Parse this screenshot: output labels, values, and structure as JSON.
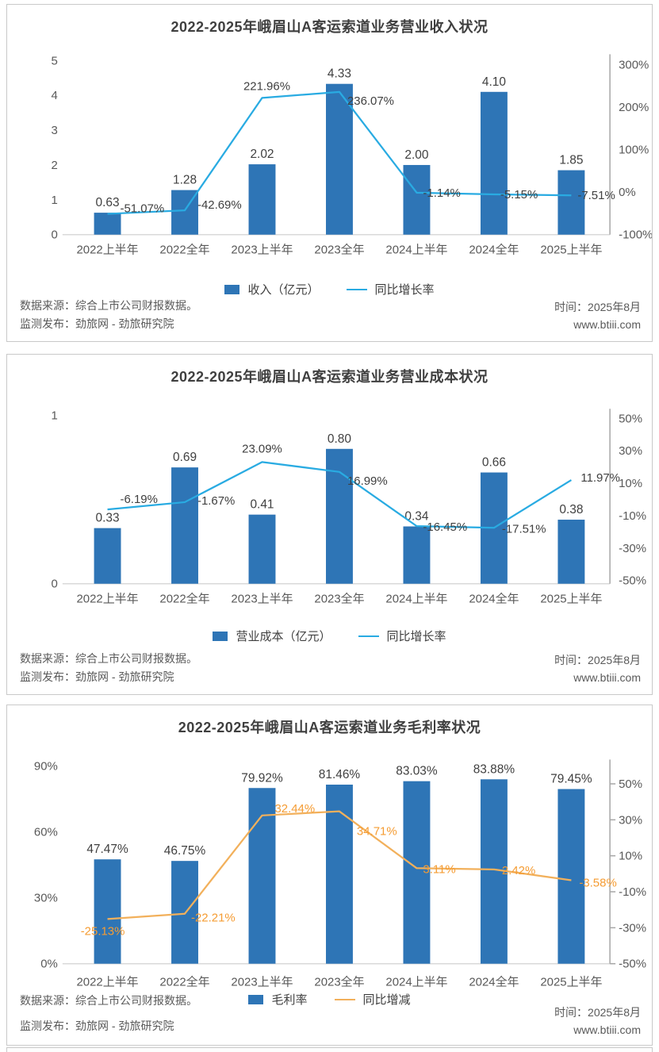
{
  "page": {
    "source_line1": "数据来源：综合上市公司财报数据。",
    "source_line2": "监测发布：劲旅网 - 劲旅研究院",
    "time": "时间：2025年8月",
    "site": "www.btiii.com"
  },
  "colors": {
    "bar": "#2e75b6",
    "line_blue": "#29abe2",
    "line_orange": "#f2b05b",
    "label_dark": "#404040",
    "label_orange": "#f59c33",
    "axis_text": "#595959",
    "baseline": "#d9d9d9",
    "axis_line": "#a6a6a6"
  },
  "chart_data": [
    {
      "type": "bar+line",
      "title": "2022-2025年峨眉山A客运索道业务营业收入状况",
      "categories": [
        "2022上半年",
        "2022全年",
        "2023上半年",
        "2023全年",
        "2024上半年",
        "2024全年",
        "2025上半年"
      ],
      "series": [
        {
          "name": "收入（亿元）",
          "type": "bar",
          "axis": "left",
          "values": [
            0.63,
            1.28,
            2.02,
            4.33,
            2.0,
            4.1,
            1.85
          ],
          "labels": [
            "0.63",
            "1.28",
            "2.02",
            "4.33",
            "2.00",
            "4.10",
            "1.85"
          ]
        },
        {
          "name": "同比增长率",
          "type": "line",
          "axis": "right",
          "values": [
            -51.07,
            -42.69,
            221.96,
            236.07,
            -1.14,
            -5.15,
            -7.51
          ],
          "labels": [
            "-51.07%",
            "-42.69%",
            "221.96%",
            "236.07%",
            "-1.14%",
            "-5.15%",
            "-7.51%"
          ]
        }
      ],
      "left_axis": {
        "min": 0,
        "max": 5,
        "tick_values": [
          5,
          4,
          3,
          2,
          1,
          0
        ],
        "tick_labels": [
          "5",
          "4",
          "3",
          "2",
          "1",
          "0"
        ]
      },
      "right_axis": {
        "min": -100,
        "max": 310,
        "tick_values": [
          300,
          200,
          100,
          0,
          -100
        ],
        "tick_labels": [
          "300%",
          "200%",
          "100%",
          "0%",
          "-100%"
        ]
      },
      "legend_position": "bottom",
      "grid": false
    },
    {
      "type": "bar+line",
      "title": "2022-2025年峨眉山A客运索道业务营业成本状况",
      "categories": [
        "2022上半年",
        "2022全年",
        "2023上半年",
        "2023全年",
        "2024上半年",
        "2024全年",
        "2025上半年"
      ],
      "series": [
        {
          "name": "营业成本（亿元）",
          "type": "bar",
          "axis": "left",
          "values": [
            0.33,
            0.69,
            0.41,
            0.8,
            0.34,
            0.66,
            0.38
          ],
          "labels": [
            "0.33",
            "0.69",
            "0.41",
            "0.80",
            "0.34",
            "0.66",
            "0.38"
          ]
        },
        {
          "name": "同比增长率",
          "type": "line",
          "axis": "right",
          "values": [
            -6.19,
            -1.67,
            23.09,
            16.99,
            -16.45,
            -17.51,
            11.97
          ],
          "labels": [
            "-6.19%",
            "-1.67%",
            "23.09%",
            "16.99%",
            "-16.45%",
            "-17.51%",
            "11.97%"
          ]
        }
      ],
      "left_axis": {
        "min": 0,
        "max": 1,
        "tick_values": [
          1,
          0
        ],
        "tick_labels": [
          "1",
          "0"
        ]
      },
      "right_axis": {
        "min": -52,
        "max": 52,
        "tick_values": [
          50,
          30,
          10,
          -10,
          -30,
          -50
        ],
        "tick_labels": [
          "50%",
          "30%",
          "10%",
          "-10%",
          "-30%",
          "-50%"
        ]
      },
      "legend_position": "bottom",
      "grid": false
    },
    {
      "type": "bar+line",
      "title": "2022-2025年峨眉山A客运索道业务毛利率状况",
      "categories": [
        "2022上半年",
        "2022全年",
        "2023上半年",
        "2023全年",
        "2024上半年",
        "2024全年",
        "2025上半年"
      ],
      "series": [
        {
          "name": "毛利率",
          "type": "bar",
          "axis": "left",
          "values": [
            47.47,
            46.75,
            79.92,
            81.46,
            83.03,
            83.88,
            79.45
          ],
          "labels": [
            "47.47%",
            "46.75%",
            "79.92%",
            "81.46%",
            "83.03%",
            "83.88%",
            "79.45%"
          ]
        },
        {
          "name": "同比增减",
          "type": "line",
          "axis": "right",
          "values": [
            -25.13,
            -22.21,
            32.44,
            34.71,
            3.11,
            2.42,
            -3.58
          ],
          "labels": [
            "-25.13%",
            "-22.21%",
            "32.44%",
            "34.71%",
            "3.11%",
            "2.42%",
            "-3.58%"
          ]
        }
      ],
      "left_axis": {
        "min": 0,
        "max": 90,
        "tick_values": [
          90,
          60,
          30,
          0
        ],
        "tick_labels": [
          "90%",
          "60%",
          "30%",
          "0%"
        ]
      },
      "right_axis": {
        "min": -50,
        "max": 60,
        "tick_values": [
          50,
          30,
          10,
          -10,
          -30,
          -50
        ],
        "tick_labels": [
          "50%",
          "30%",
          "10%",
          "-10%",
          "-30%",
          "-50%"
        ]
      },
      "legend_position": "bottom",
      "grid": false
    }
  ]
}
